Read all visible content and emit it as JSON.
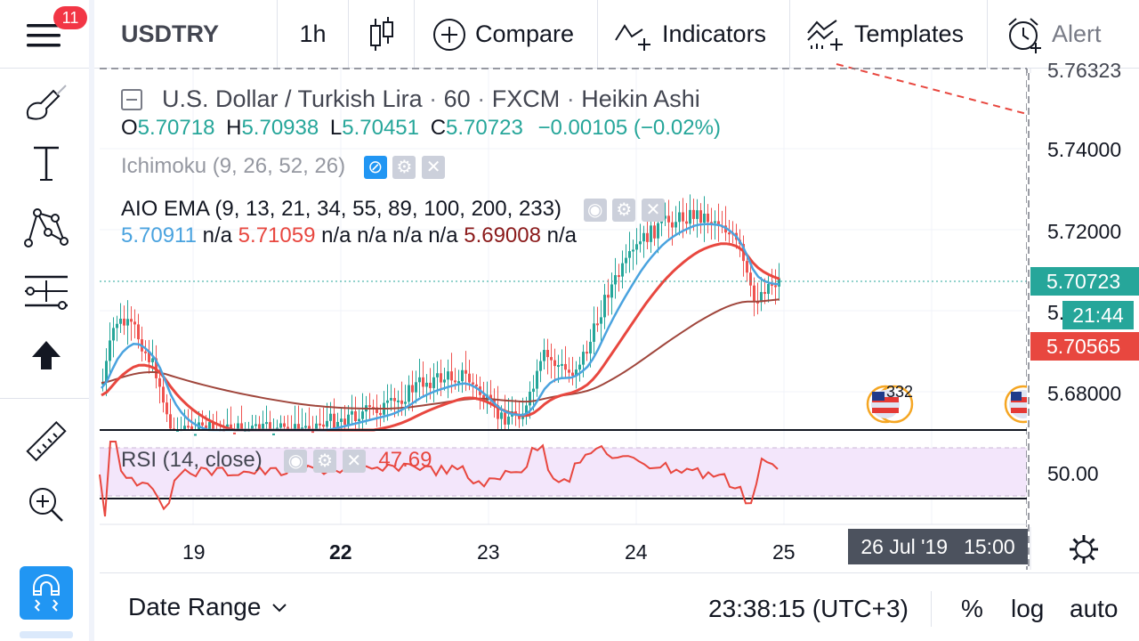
{
  "topbar": {
    "badge": "11",
    "symbol": "USDTRY",
    "interval": "1h",
    "compare": "Compare",
    "indicators": "Indicators",
    "templates": "Templates",
    "alert": "Alert"
  },
  "legend": {
    "title": "U.S. Dollar / Turkish Lira",
    "sep": "·",
    "interval": "60",
    "source": "FXCM",
    "style": "Heikin Ashi",
    "o_label": "O",
    "o_val": "5.70718",
    "h_label": "H",
    "h_val": "5.70938",
    "l_label": "L",
    "l_val": "5.70451",
    "c_label": "C",
    "c_val": "5.70723",
    "change": "−0.00105 (−0.02%)",
    "ichimoku": "Ichimoku (9, 26, 52, 26)",
    "aio": "AIO EMA (9, 13, 21, 34, 55, 89, 100, 200, 233)",
    "aio_values": [
      {
        "text": "5.70911",
        "color": "#4aa3df"
      },
      {
        "text": "n/a",
        "color": "#131722"
      },
      {
        "text": "5.71059",
        "color": "#e8473f"
      },
      {
        "text": "n/a n/a n/a n/a",
        "color": "#131722"
      },
      {
        "text": "5.69008",
        "color": "#8b1a1a"
      },
      {
        "text": "n/a",
        "color": "#131722"
      }
    ],
    "rsi": "RSI (14, close)",
    "rsi_val": "47.69"
  },
  "price_axis": {
    "top_partial": "5.76323",
    "labels": [
      "5.74000",
      "5.72000",
      "5.68000"
    ],
    "current": "5.70723",
    "countdown_prefix": "5.",
    "countdown": "21:44",
    "ema_tag": "5.70565",
    "rsi_label": "50.00"
  },
  "time_axis": {
    "labels": [
      "19",
      "22",
      "23",
      "24",
      "25"
    ],
    "cursor_date": "26 Jul '19",
    "cursor_time": "15:00"
  },
  "events": {
    "count": "332"
  },
  "bottombar": {
    "date_range": "Date Range",
    "clock": "23:38:15 (UTC+3)",
    "percent": "%",
    "log": "log",
    "auto": "auto"
  },
  "colors": {
    "up": "#26a69a",
    "down": "#ef5350",
    "ema_fast": "#4aa3df",
    "ema_mid": "#e8473f",
    "ema_slow": "#a0463c",
    "rsi_line": "#e8473f",
    "rsi_band": "#f3e6fb",
    "accent": "#2196f3",
    "badge": "#f23645"
  },
  "icons": {
    "menu": "menu-icon",
    "candles": "candles-icon",
    "compare": "plus-circle-icon",
    "indicators": "indicators-icon",
    "templates": "templates-icon",
    "alert": "alarm-clock-icon",
    "settings": "gear-icon",
    "magnet": "magnet-icon"
  }
}
